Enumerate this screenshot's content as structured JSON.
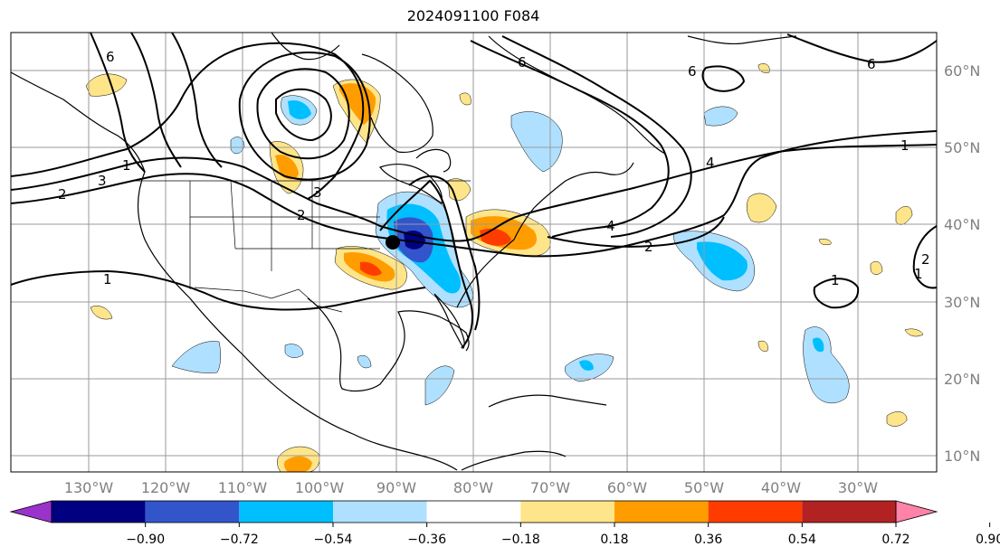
{
  "title": "2024091100 F084",
  "map": {
    "lon_labels": [
      "130°W",
      "120°W",
      "110°W",
      "100°W",
      "90°W",
      "80°W",
      "70°W",
      "60°W",
      "50°W",
      "40°W",
      "30°W"
    ],
    "lat_labels": [
      "60°N",
      "50°N",
      "40°N",
      "30°N",
      "20°N",
      "10°N"
    ],
    "gridlines": true,
    "contour_labels": [
      "6",
      "6",
      "6",
      "6",
      "1",
      "2",
      "3",
      "1",
      "3",
      "2",
      "4",
      "1",
      "2",
      "4",
      "1",
      "1",
      "2"
    ],
    "marker": "black-dot"
  },
  "colorbar": {
    "tick_labels": [
      "−0.90",
      "−0.72",
      "−0.54",
      "−0.36",
      "−0.18",
      "0.18",
      "0.36",
      "0.54",
      "0.72",
      "0.90"
    ],
    "colors": [
      "#9933cc",
      "#000080",
      "#3355cc",
      "#00bfff",
      "#b0e0ff",
      "#ffffff",
      "#ffe58a",
      "#ff9d00",
      "#ff3c00",
      "#b22222",
      "#ff82a9"
    ],
    "extend": "both"
  }
}
